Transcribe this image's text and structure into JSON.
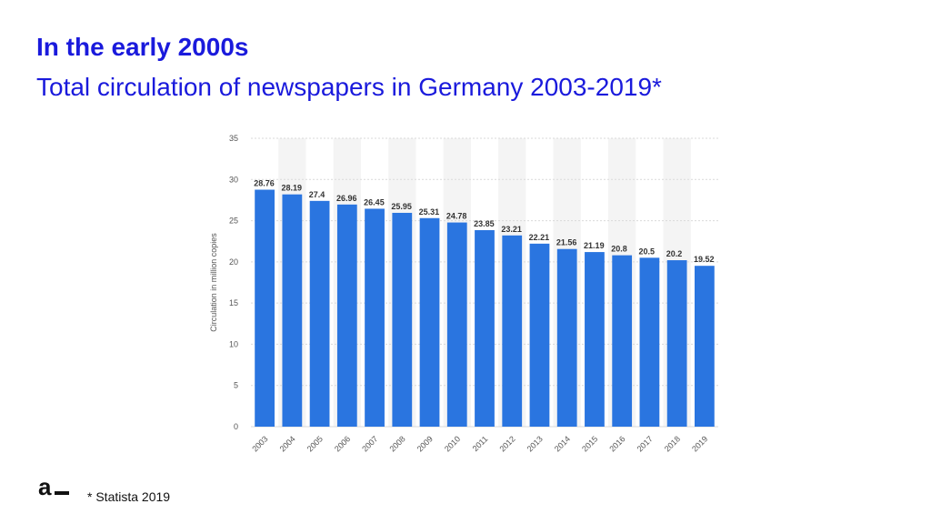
{
  "slide": {
    "title": "In the early 2000s",
    "subtitle": "Total circulation of newspapers in Germany 2003-2019*",
    "footnote": "* Statista 2019",
    "accent_color": "#1a1adc"
  },
  "chart_data": {
    "type": "bar",
    "categories": [
      "2003",
      "2004",
      "2005",
      "2006",
      "2007",
      "2008",
      "2009",
      "2010",
      "2011",
      "2012",
      "2013",
      "2014",
      "2015",
      "2016",
      "2017",
      "2018",
      "2019"
    ],
    "values": [
      28.76,
      28.19,
      27.4,
      26.96,
      26.45,
      25.95,
      25.31,
      24.78,
      23.85,
      23.21,
      22.21,
      21.56,
      21.19,
      20.8,
      20.5,
      20.2,
      19.52
    ],
    "value_labels": [
      "28.76",
      "28.19",
      "27.4",
      "26.96",
      "26.45",
      "25.95",
      "25.31",
      "24.78",
      "23.85",
      "23.21",
      "22.21",
      "21.56",
      "21.19",
      "20.8",
      "20.5",
      "20.2",
      "19.52"
    ],
    "ylabel": "Circulation in million copies",
    "ylim": [
      0,
      35
    ],
    "yticks": [
      0,
      5,
      10,
      15,
      20,
      25,
      30,
      35
    ],
    "grid": true,
    "bar_color": "#2a75e0"
  }
}
